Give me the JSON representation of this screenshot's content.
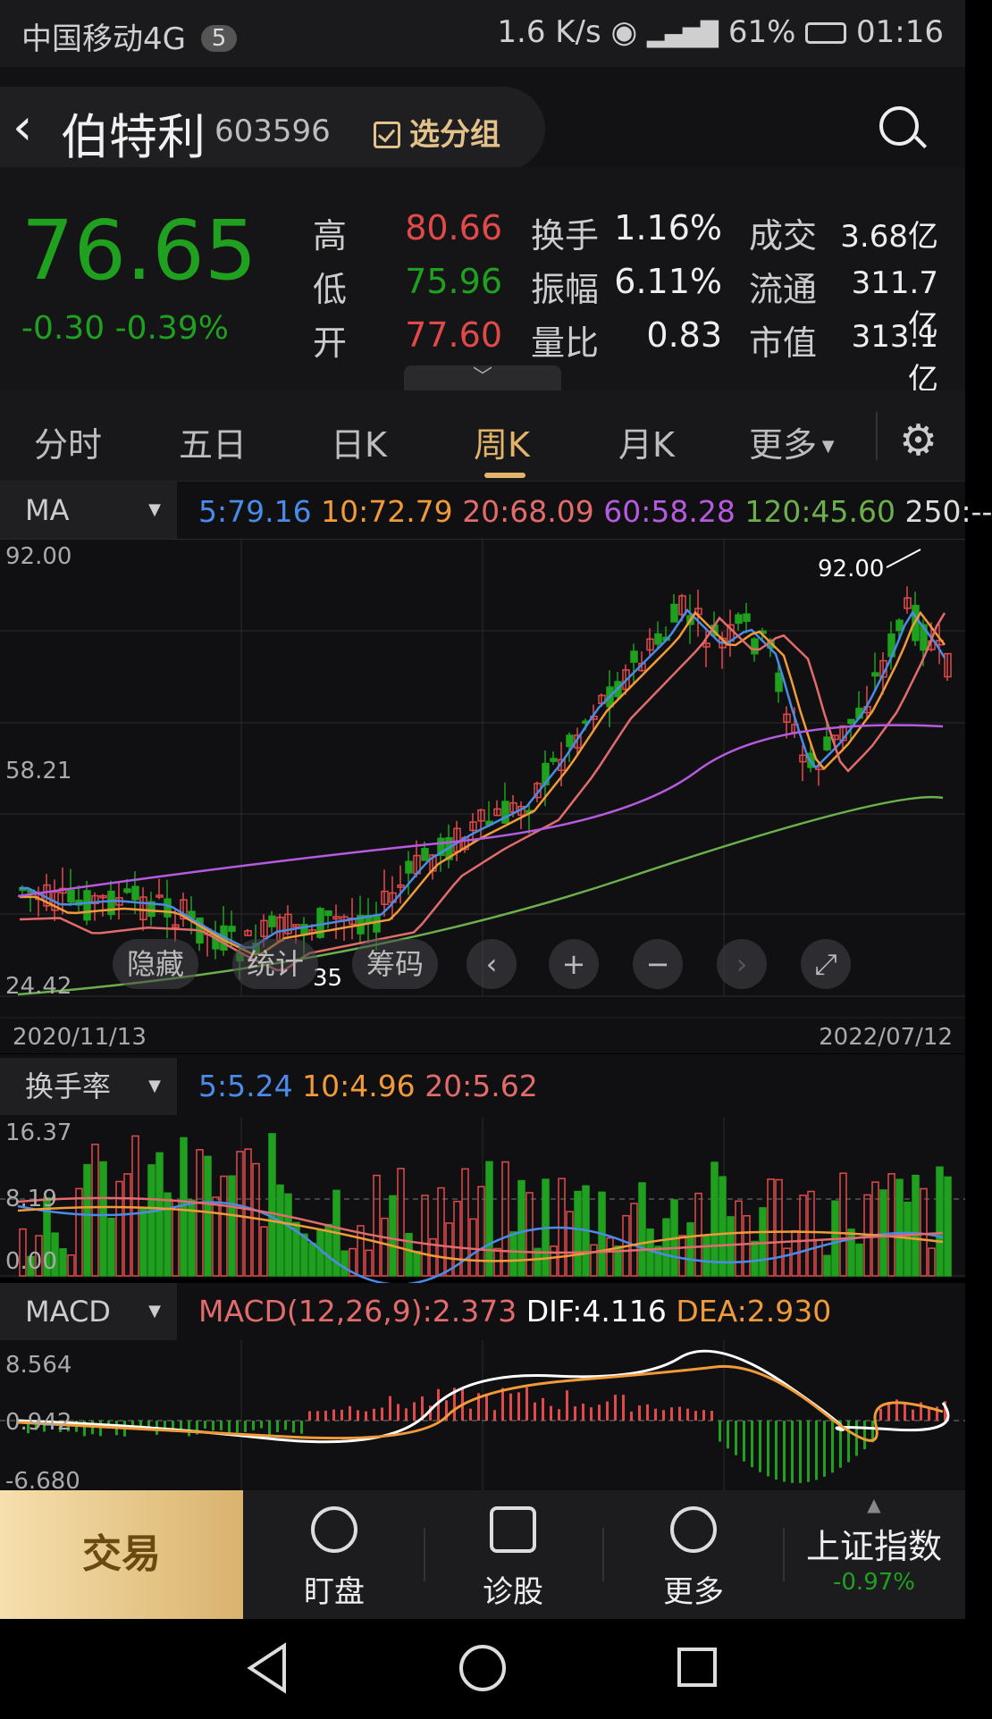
{
  "status_bar": {
    "carrier": "中国移动4G",
    "sim": "5",
    "speed": "1.6 K/s",
    "battery": "61%",
    "time": "01:16"
  },
  "header": {
    "name": "伯特利",
    "code": "603596",
    "group_button": "选分组"
  },
  "quote": {
    "price": "76.65",
    "change": "-0.30 -0.39%",
    "rows": [
      {
        "l1": "高",
        "v1": "80.66",
        "l2": "换手",
        "v2": "1.16%",
        "l3": "成交",
        "v3": "3.68亿"
      },
      {
        "l1": "低",
        "v1": "75.96",
        "l2": "振幅",
        "v2": "6.11%",
        "l3": "流通",
        "v3": "311.7亿"
      },
      {
        "l1": "开",
        "v1": "77.60",
        "l2": "量比",
        "v2": "0.83",
        "l3": "市值",
        "v3": "313.1亿"
      }
    ]
  },
  "tabs": [
    "分时",
    "五日",
    "日K",
    "周K",
    "月K",
    "更多"
  ],
  "active_tab": "周K",
  "main_chart": {
    "selector": "MA",
    "legend": [
      {
        "text": "5:79.16",
        "color": "#4a8be8"
      },
      {
        "text": "10:72.79",
        "color": "#f09a3a"
      },
      {
        "text": "20:68.09",
        "color": "#e26b6b"
      },
      {
        "text": "60:58.28",
        "color": "#b65be0"
      },
      {
        "text": "120:45.60",
        "color": "#6cb04c"
      },
      {
        "text": "250:--",
        "color": "#dddddd"
      }
    ],
    "y_top": "92.00",
    "y_mid": "58.21",
    "y_bottom": "24.42",
    "high_label": "92.00",
    "low_label_partial": "35",
    "date_start": "2020/11/13",
    "date_end": "2022/07/12"
  },
  "floating_toolbar": {
    "hide": "隐藏",
    "stats": "统计",
    "chips": "筹码"
  },
  "volume_chart": {
    "selector": "换手率",
    "legend": [
      {
        "text": "5:5.24",
        "color": "#4a8be8"
      },
      {
        "text": "10:4.96",
        "color": "#f09a3a"
      },
      {
        "text": "20:5.62",
        "color": "#e26b6b"
      }
    ],
    "y_top": "16.37",
    "y_mid": "8.19",
    "y_bottom": "0.00"
  },
  "macd_chart": {
    "selector": "MACD",
    "legend": [
      {
        "text": "MACD(12,26,9):2.373",
        "color": "#e26b6b"
      },
      {
        "text": "DIF:4.116",
        "color": "#ffffff"
      },
      {
        "text": "DEA:2.930",
        "color": "#f09a3a"
      }
    ],
    "y_top": "8.564",
    "y_mid": "0.942",
    "y_bottom": "-6.680"
  },
  "bottom_bar": {
    "trade": "交易",
    "watch": "盯盘",
    "diagnose": "诊股",
    "more": "更多",
    "index_name": "上证指数",
    "index_change": "-0.97%"
  },
  "colors": {
    "up": "#e24a4a",
    "down": "#1fa01f",
    "accent": "#e2b46a"
  }
}
